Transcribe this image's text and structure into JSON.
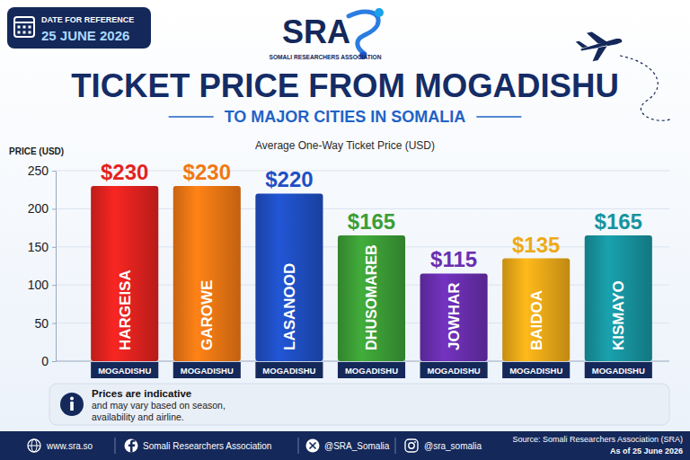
{
  "header": {
    "date_caption": "DATE FOR REFERENCE",
    "date": "25 JUNE 2026",
    "logo": "SRA",
    "organization": "SOMALI RESEARCHERS ASSOCIATION"
  },
  "chart_data": {
    "type": "bar",
    "title": "TICKET PRICE FROM MOGADISHU",
    "subtitle": "TO MAJOR CITIES IN SOMALIA",
    "caption": "Average One-Way Ticket Price (USD)",
    "y_label": "PRICE (USD)",
    "categories": [
      "HARGEISA",
      "GAROWE",
      "LASANOOD",
      "DHUSOMAREB",
      "JOWHAR",
      "BAIDOA",
      "KISMAYO"
    ],
    "origins": [
      "MOGADISHU",
      "MOGADISHU",
      "MOGADISHU",
      "MOGADISHU",
      "MOGADISHU",
      "MOGADISHU",
      "MOGADISHU"
    ],
    "values": [
      230,
      230,
      220,
      165,
      115,
      135,
      165
    ],
    "value_labels": [
      "$230",
      "$230",
      "$220",
      "$165",
      "$115",
      "$135",
      "$165"
    ],
    "colors": [
      "#e3231f",
      "#f07814",
      "#1f4fc4",
      "#3c9e36",
      "#6a2fb0",
      "#eeaa18",
      "#17949f"
    ],
    "ylim": [
      0,
      250
    ],
    "yticks": [
      0,
      50,
      100,
      150,
      200,
      250
    ],
    "grid": true,
    "data_labels": true
  },
  "note": {
    "heading": "Prices are indicative",
    "lines": [
      "and may vary based on season,",
      "availability and airline."
    ]
  },
  "footer": {
    "website": "www.sra.so",
    "facebook": "Somali Researchers Association",
    "x": "@SRA_Somalia",
    "instagram": "@sra_somalia",
    "source": "Source: Somali Researchers Association (SRA)",
    "as_of": "As of 25 June 2026"
  }
}
